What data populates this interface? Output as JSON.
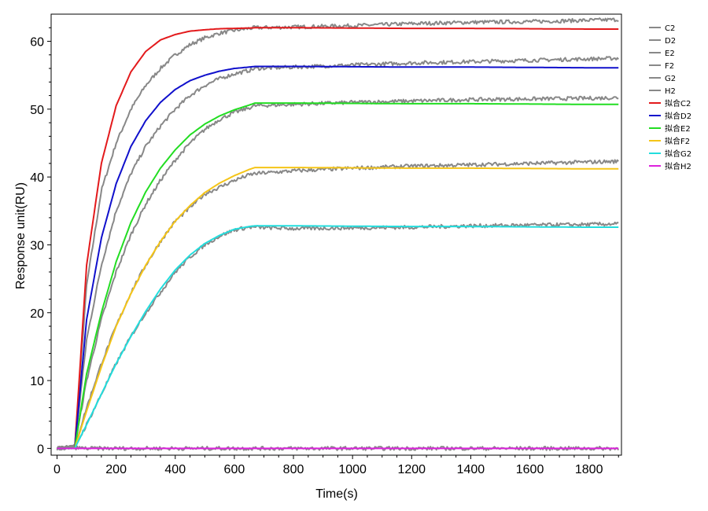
{
  "chart_data": {
    "type": "line",
    "title": "",
    "xlabel": "Time(s)",
    "ylabel": "Response unit(RU)",
    "xlim": [
      -20,
      1910
    ],
    "ylim": [
      -1,
      64
    ],
    "xticks": [
      0,
      200,
      400,
      600,
      800,
      1000,
      1200,
      1400,
      1600,
      1800
    ],
    "yticks": [
      0,
      10,
      20,
      30,
      40,
      50,
      60
    ],
    "grid": false,
    "legend_position": "top-right",
    "measured_color": "#888888",
    "series": [
      {
        "name": "C2",
        "kind": "measured",
        "color": "#888888",
        "x": [
          0,
          60,
          100,
          150,
          200,
          250,
          300,
          350,
          400,
          450,
          500,
          550,
          600,
          650,
          670,
          800,
          1000,
          1200,
          1400,
          1600,
          1800,
          1900
        ],
        "y": [
          0,
          0.3,
          24,
          38,
          45,
          50,
          53.5,
          56,
          58,
          59.5,
          60.5,
          61.2,
          61.6,
          61.9,
          62,
          62.1,
          62.3,
          62.6,
          62.8,
          62.9,
          63.1,
          63.2
        ]
      },
      {
        "name": "D2",
        "kind": "measured",
        "color": "#888888",
        "x": [
          0,
          60,
          100,
          150,
          200,
          250,
          300,
          350,
          400,
          450,
          500,
          550,
          600,
          650,
          670,
          800,
          1000,
          1200,
          1400,
          1600,
          1800,
          1900
        ],
        "y": [
          0,
          0.3,
          16,
          27,
          35,
          40.5,
          44.5,
          47.5,
          50,
          52,
          53.5,
          54.5,
          55.2,
          55.7,
          56,
          56.2,
          56.5,
          56.8,
          57,
          57.2,
          57.4,
          57.5
        ]
      },
      {
        "name": "E2",
        "kind": "measured",
        "color": "#888888",
        "x": [
          0,
          60,
          100,
          150,
          200,
          250,
          300,
          350,
          400,
          450,
          500,
          550,
          600,
          650,
          670,
          800,
          1000,
          1200,
          1400,
          1600,
          1800,
          1900
        ],
        "y": [
          0,
          0.3,
          10,
          19,
          26,
          31.5,
          36,
          39.5,
          42.5,
          45,
          47,
          48.5,
          49.5,
          50.2,
          50.5,
          50.7,
          51,
          51.2,
          51.4,
          51.5,
          51.6,
          51.7
        ]
      },
      {
        "name": "F2",
        "kind": "measured",
        "color": "#888888",
        "x": [
          0,
          60,
          100,
          150,
          200,
          250,
          300,
          350,
          400,
          450,
          500,
          550,
          600,
          650,
          670,
          800,
          1000,
          1200,
          1400,
          1600,
          1800,
          1900
        ],
        "y": [
          0,
          0.3,
          6,
          12.5,
          18,
          23,
          27,
          30.5,
          33.5,
          35.5,
          37.5,
          38.5,
          39.5,
          40.3,
          40.5,
          40.9,
          41.3,
          41.6,
          41.8,
          42,
          42.2,
          42.3
        ]
      },
      {
        "name": "G2",
        "kind": "measured",
        "color": "#888888",
        "x": [
          0,
          60,
          100,
          150,
          200,
          250,
          300,
          350,
          400,
          450,
          500,
          550,
          600,
          650,
          670,
          800,
          1000,
          1200,
          1400,
          1600,
          1800,
          1900
        ],
        "y": [
          0,
          0.2,
          3.5,
          8,
          12.5,
          16.5,
          20,
          23,
          26,
          28.2,
          30,
          31.3,
          32.2,
          32.6,
          32.6,
          32.4,
          32.5,
          32.6,
          32.8,
          32.9,
          33,
          33.1
        ]
      },
      {
        "name": "H2",
        "kind": "measured",
        "color": "#888888",
        "x": [
          0,
          60,
          100,
          200,
          400,
          600,
          800,
          1000,
          1200,
          1400,
          1600,
          1800,
          1900
        ],
        "y": [
          0,
          0.1,
          0,
          0,
          0,
          0,
          0,
          0,
          0,
          0,
          0,
          0,
          0
        ]
      },
      {
        "name": "拟合C2",
        "kind": "fit",
        "color": "#e31a1c",
        "x": [
          0,
          60,
          100,
          150,
          200,
          250,
          300,
          350,
          400,
          450,
          500,
          550,
          600,
          650,
          670,
          800,
          1000,
          1200,
          1400,
          1600,
          1800,
          1900
        ],
        "y": [
          0,
          0,
          27,
          42,
          50.5,
          55.5,
          58.5,
          60.2,
          61,
          61.5,
          61.7,
          61.85,
          61.9,
          61.95,
          62,
          62,
          61.95,
          61.9,
          61.9,
          61.85,
          61.8,
          61.8
        ]
      },
      {
        "name": "拟合D2",
        "kind": "fit",
        "color": "#1010cc",
        "x": [
          0,
          60,
          100,
          150,
          200,
          250,
          300,
          350,
          400,
          450,
          500,
          550,
          600,
          650,
          670,
          800,
          1000,
          1200,
          1400,
          1600,
          1800,
          1900
        ],
        "y": [
          0,
          0,
          19,
          31,
          39,
          44.5,
          48.3,
          51,
          52.9,
          54.2,
          55,
          55.6,
          56,
          56.2,
          56.3,
          56.3,
          56.25,
          56.2,
          56.2,
          56.15,
          56.1,
          56.1
        ]
      },
      {
        "name": "拟合E2",
        "kind": "fit",
        "color": "#22dd22",
        "x": [
          0,
          60,
          100,
          150,
          200,
          250,
          300,
          350,
          400,
          450,
          500,
          550,
          600,
          650,
          670,
          800,
          1000,
          1200,
          1400,
          1600,
          1800,
          1900
        ],
        "y": [
          0,
          0,
          11,
          20,
          27.5,
          33.3,
          37.8,
          41.3,
          44,
          46.2,
          47.8,
          49,
          49.9,
          50.6,
          50.9,
          50.9,
          50.85,
          50.8,
          50.8,
          50.75,
          50.7,
          50.7
        ]
      },
      {
        "name": "拟合F2",
        "kind": "fit",
        "color": "#f5c518",
        "x": [
          0,
          60,
          100,
          150,
          200,
          250,
          300,
          350,
          400,
          450,
          500,
          550,
          600,
          650,
          670,
          800,
          1000,
          1200,
          1400,
          1600,
          1800,
          1900
        ],
        "y": [
          0,
          0,
          5.5,
          12,
          18,
          22.8,
          27,
          30.5,
          33.5,
          35.8,
          37.7,
          39.1,
          40.2,
          41.1,
          41.4,
          41.4,
          41.35,
          41.3,
          41.3,
          41.25,
          41.2,
          41.2
        ]
      },
      {
        "name": "拟合G2",
        "kind": "fit",
        "color": "#22dddd",
        "x": [
          0,
          60,
          100,
          150,
          200,
          250,
          300,
          350,
          400,
          450,
          500,
          550,
          600,
          650,
          670,
          800,
          1000,
          1200,
          1400,
          1600,
          1800,
          1900
        ],
        "y": [
          0,
          0,
          3.5,
          8,
          12.5,
          16.5,
          20.2,
          23.5,
          26.3,
          28.5,
          30.2,
          31.4,
          32.3,
          32.7,
          32.8,
          32.8,
          32.75,
          32.7,
          32.7,
          32.65,
          32.6,
          32.6
        ]
      },
      {
        "name": "拟合H2",
        "kind": "fit",
        "color": "#dd22dd",
        "x": [
          0,
          1900
        ],
        "y": [
          0,
          0
        ]
      }
    ]
  }
}
